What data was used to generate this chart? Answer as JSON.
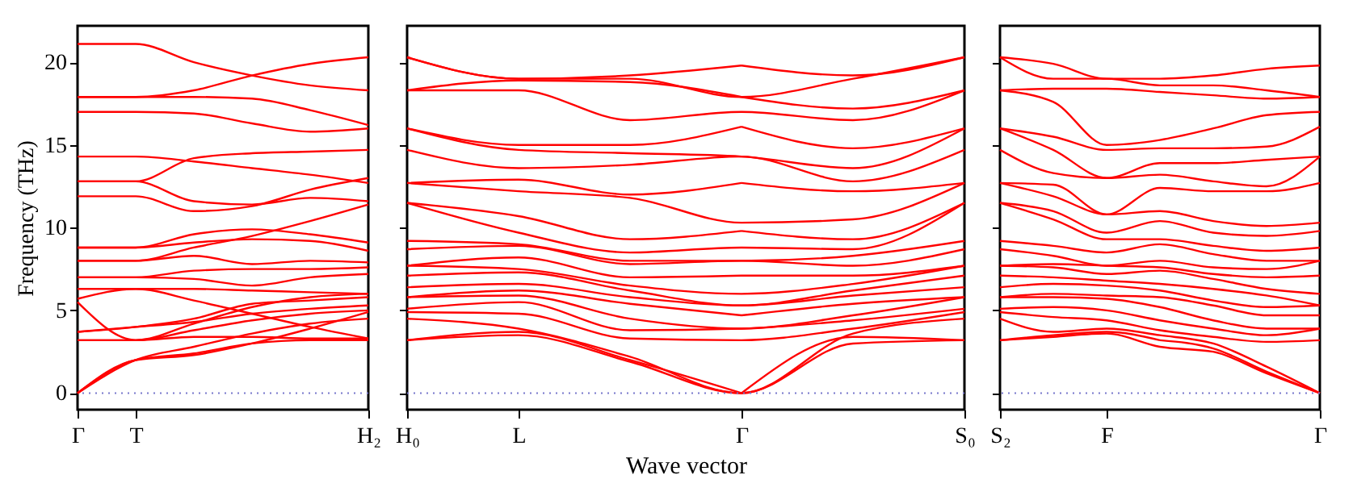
{
  "chart_data": [
    {
      "type": "line",
      "ylabel": "Frequency (THz)",
      "categories": [
        "Γ",
        "T",
        null,
        null,
        null,
        "H₂"
      ],
      "ylim": [
        -1,
        22.2
      ],
      "yticks": [
        0,
        5,
        10,
        15,
        20
      ],
      "ref_lines": [
        {
          "axis": "y",
          "value": 0,
          "color": "#7777cc",
          "line_style": "dotted"
        }
      ],
      "series": [
        {
          "color": "#ff0000",
          "values": [
            21.1,
            21.1,
            20.0,
            19.2,
            18.6,
            18.3
          ]
        },
        {
          "color": "#ff0000",
          "values": [
            17.9,
            17.9,
            18.3,
            19.2,
            19.9,
            20.3
          ]
        },
        {
          "color": "#ff0000",
          "values": [
            17.9,
            17.9,
            17.9,
            17.8,
            17.1,
            16.2
          ]
        },
        {
          "color": "#ff0000",
          "values": [
            17.0,
            17.0,
            16.9,
            16.3,
            15.8,
            16.0
          ]
        },
        {
          "color": "#ff0000",
          "values": [
            12.8,
            12.8,
            14.2,
            14.5,
            14.6,
            14.7
          ]
        },
        {
          "color": "#ff0000",
          "values": [
            14.3,
            14.3,
            14.0,
            13.6,
            13.2,
            12.7
          ]
        },
        {
          "color": "#ff0000",
          "values": [
            12.8,
            12.8,
            11.6,
            11.4,
            11.8,
            11.6
          ]
        },
        {
          "color": "#ff0000",
          "values": [
            11.9,
            11.9,
            11.0,
            11.3,
            12.3,
            13.0
          ]
        },
        {
          "color": "#ff0000",
          "values": [
            8.0,
            8.0,
            8.8,
            9.5,
            10.4,
            11.4
          ]
        },
        {
          "color": "#ff0000",
          "values": [
            8.8,
            8.8,
            9.6,
            9.9,
            9.6,
            9.1
          ]
        },
        {
          "color": "#ff0000",
          "values": [
            8.8,
            8.8,
            9.1,
            9.3,
            9.2,
            8.6
          ]
        },
        {
          "color": "#ff0000",
          "values": [
            8.0,
            8.0,
            8.3,
            7.8,
            8.0,
            7.9
          ]
        },
        {
          "color": "#ff0000",
          "values": [
            7.0,
            7.0,
            7.4,
            7.5,
            7.5,
            7.6
          ]
        },
        {
          "color": "#ff0000",
          "values": [
            7.0,
            7.0,
            6.9,
            6.5,
            7.0,
            7.2
          ]
        },
        {
          "color": "#ff0000",
          "values": [
            6.3,
            6.3,
            6.3,
            6.2,
            6.1,
            6.0
          ]
        },
        {
          "color": "#ff0000",
          "values": [
            5.7,
            6.3,
            5.6,
            4.8,
            4.0,
            3.3
          ]
        },
        {
          "color": "#ff0000",
          "values": [
            5.5,
            3.2,
            4.2,
            5.2,
            5.8,
            6.0
          ]
        },
        {
          "color": "#ff0000",
          "values": [
            3.7,
            4.0,
            4.5,
            5.4,
            5.6,
            5.8
          ]
        },
        {
          "color": "#ff0000",
          "values": [
            3.7,
            4.0,
            4.3,
            4.8,
            5.1,
            5.3
          ]
        },
        {
          "color": "#ff0000",
          "values": [
            3.2,
            3.2,
            3.8,
            4.4,
            4.8,
            5.0
          ]
        },
        {
          "color": "#ff0000",
          "values": [
            3.2,
            3.2,
            3.4,
            3.4,
            3.3,
            3.3
          ]
        },
        {
          "color": "#ff0000",
          "values": [
            0,
            2.0,
            2.8,
            3.6,
            4.2,
            4.5
          ]
        },
        {
          "color": "#ff0000",
          "values": [
            0,
            2.0,
            2.4,
            3.0,
            3.2,
            3.2
          ]
        },
        {
          "color": "#ff0000",
          "values": [
            0,
            2.0,
            2.3,
            3.0,
            3.9,
            4.9
          ]
        }
      ]
    },
    {
      "type": "line",
      "xlabel": "Wave vector",
      "tick_labels": "x",
      "categories": [
        "H₀",
        "L",
        null,
        "Γ",
        null,
        "S₀"
      ],
      "ylim": [
        -1,
        22.2
      ],
      "yticks": [
        0,
        5,
        10,
        15,
        20
      ],
      "ref_lines": [
        {
          "axis": "y",
          "value": 0,
          "color": "#7777cc",
          "line_style": "dotted"
        }
      ],
      "series": [
        {
          "color": "#ff0000",
          "values": [
            3.2,
            3.5,
            1.9,
            0,
            3.0,
            3.2
          ]
        },
        {
          "color": "#ff0000",
          "values": [
            3.2,
            3.7,
            2.0,
            0,
            null,
            null
          ]
        },
        {
          "color": "#ff0000",
          "values": [
            null,
            null,
            null,
            0,
            3.4,
            3.2
          ]
        },
        {
          "color": "#ff0000",
          "values": [
            4.5,
            3.9,
            2.2,
            0,
            3.6,
            4.5
          ]
        },
        {
          "color": "#ff0000",
          "values": [
            4.9,
            4.8,
            3.3,
            3.2,
            3.9,
            4.9
          ]
        },
        {
          "color": "#ff0000",
          "values": [
            5.1,
            5.5,
            3.8,
            3.9,
            4.4,
            5.1
          ]
        },
        {
          "color": "#ff0000",
          "values": [
            5.8,
            5.9,
            4.5,
            3.9,
            4.7,
            5.8
          ]
        },
        {
          "color": "#ff0000",
          "values": [
            5.8,
            6.2,
            5.4,
            4.7,
            null,
            null
          ]
        },
        {
          "color": "#ff0000",
          "values": [
            null,
            null,
            null,
            4.7,
            5.4,
            5.8
          ]
        },
        {
          "color": "#ff0000",
          "values": [
            6.4,
            6.6,
            5.8,
            5.3,
            5.9,
            6.4
          ]
        },
        {
          "color": "#ff0000",
          "values": [
            7.1,
            7.3,
            6.2,
            5.3,
            6.2,
            7.1
          ]
        },
        {
          "color": "#ff0000",
          "values": [
            7.7,
            7.5,
            6.5,
            6.0,
            6.6,
            7.7
          ]
        },
        {
          "color": "#ff0000",
          "values": [
            7.7,
            8.2,
            7.0,
            7.1,
            null,
            null
          ]
        },
        {
          "color": "#ff0000",
          "values": [
            null,
            null,
            null,
            7.1,
            7.1,
            7.7
          ]
        },
        {
          "color": "#ff0000",
          "values": [
            8.7,
            8.9,
            7.8,
            8.0,
            7.7,
            8.7
          ]
        },
        {
          "color": "#ff0000",
          "values": [
            9.2,
            9.0,
            8.0,
            8.0,
            8.3,
            9.2
          ]
        },
        {
          "color": "#ff0000",
          "values": [
            11.5,
            9.7,
            8.5,
            8.8,
            8.7,
            11.5
          ]
        },
        {
          "color": "#ff0000",
          "values": [
            11.5,
            10.7,
            9.3,
            9.8,
            null,
            null
          ]
        },
        {
          "color": "#ff0000",
          "values": [
            null,
            null,
            null,
            9.8,
            9.3,
            11.5
          ]
        },
        {
          "color": "#ff0000",
          "values": [
            12.7,
            12.2,
            11.8,
            10.3,
            10.5,
            12.7
          ]
        },
        {
          "color": "#ff0000",
          "values": [
            12.7,
            12.9,
            12.0,
            12.7,
            null,
            null
          ]
        },
        {
          "color": "#ff0000",
          "values": [
            null,
            null,
            null,
            12.7,
            12.2,
            12.7
          ]
        },
        {
          "color": "#ff0000",
          "values": [
            14.7,
            13.6,
            13.8,
            14.3,
            12.8,
            14.7
          ]
        },
        {
          "color": "#ff0000",
          "values": [
            16.0,
            14.7,
            14.5,
            14.3,
            13.6,
            16.0
          ]
        },
        {
          "color": "#ff0000",
          "values": [
            16.0,
            15.0,
            15.0,
            16.1,
            null,
            null
          ]
        },
        {
          "color": "#ff0000",
          "values": [
            null,
            null,
            null,
            16.1,
            14.8,
            16.0
          ]
        },
        {
          "color": "#ff0000",
          "values": [
            18.3,
            18.3,
            16.5,
            17.0,
            16.5,
            18.3
          ]
        },
        {
          "color": "#ff0000",
          "values": [
            18.3,
            18.9,
            18.8,
            17.9,
            null,
            null
          ]
        },
        {
          "color": "#ff0000",
          "values": [
            null,
            null,
            null,
            17.9,
            17.2,
            18.3
          ]
        },
        {
          "color": "#ff0000",
          "values": [
            20.3,
            19.0,
            19.0,
            17.9,
            19.0,
            20.3
          ]
        },
        {
          "color": "#ff0000",
          "values": [
            20.3,
            19.0,
            19.2,
            19.8,
            null,
            null
          ]
        },
        {
          "color": "#ff0000",
          "values": [
            null,
            null,
            null,
            19.8,
            19.2,
            20.3
          ]
        }
      ]
    },
    {
      "type": "line",
      "tick_labels": "x",
      "categories": [
        "S₂",
        null,
        "F",
        null,
        null,
        null,
        "Γ"
      ],
      "ylim": [
        -1,
        22.2
      ],
      "yticks": [
        0,
        5,
        10,
        15,
        20
      ],
      "ref_lines": [
        {
          "axis": "y",
          "value": 0,
          "color": "#7777cc",
          "line_style": "dotted"
        }
      ],
      "series": [
        {
          "color": "#ff0000",
          "values": [
            3.2,
            3.4,
            3.6,
            2.8,
            2.5,
            1.2,
            0
          ]
        },
        {
          "color": "#ff0000",
          "values": [
            3.2,
            3.5,
            3.7,
            3.2,
            null,
            null,
            null
          ]
        },
        {
          "color": "#ff0000",
          "values": [
            null,
            null,
            null,
            3.2,
            2.7,
            1.3,
            0
          ]
        },
        {
          "color": "#ff0000",
          "values": [
            4.5,
            3.7,
            3.9,
            3.5,
            3.0,
            1.6,
            0
          ]
        },
        {
          "color": "#ff0000",
          "values": [
            4.9,
            4.6,
            4.4,
            3.8,
            3.4,
            3.1,
            3.2
          ]
        },
        {
          "color": "#ff0000",
          "values": [
            5.1,
            5.2,
            5.0,
            4.4,
            3.9,
            3.5,
            3.9
          ]
        },
        {
          "color": "#ff0000",
          "values": [
            5.8,
            5.8,
            5.7,
            5.2,
            4.4,
            3.9,
            3.9
          ]
        },
        {
          "color": "#ff0000",
          "values": [
            5.8,
            6.0,
            5.9,
            5.8,
            5.3,
            4.7,
            4.7
          ]
        },
        {
          "color": "#ff0000",
          "values": [
            6.4,
            6.6,
            6.5,
            6.2,
            5.6,
            5.2,
            5.3
          ]
        },
        {
          "color": "#ff0000",
          "values": [
            7.1,
            7.0,
            6.8,
            6.6,
            6.3,
            5.9,
            5.3
          ]
        },
        {
          "color": "#ff0000",
          "values": [
            7.7,
            7.6,
            7.2,
            7.4,
            6.9,
            6.3,
            6.0
          ]
        },
        {
          "color": "#ff0000",
          "values": [
            7.7,
            7.8,
            7.7,
            7.6,
            7.2,
            7.0,
            7.1
          ]
        },
        {
          "color": "#ff0000",
          "values": [
            8.7,
            8.3,
            7.7,
            8.0,
            7.6,
            7.5,
            8.0
          ]
        },
        {
          "color": "#ff0000",
          "values": [
            9.2,
            8.9,
            8.5,
            9.0,
            8.4,
            8.0,
            8.0
          ]
        },
        {
          "color": "#ff0000",
          "values": [
            11.5,
            10.5,
            9.3,
            9.3,
            8.9,
            8.6,
            8.8
          ]
        },
        {
          "color": "#ff0000",
          "values": [
            11.5,
            11.0,
            9.7,
            10.4,
            9.7,
            9.5,
            9.8
          ]
        },
        {
          "color": "#ff0000",
          "values": [
            12.7,
            11.9,
            10.8,
            11.0,
            10.4,
            10.1,
            10.3
          ]
        },
        {
          "color": "#ff0000",
          "values": [
            12.7,
            12.6,
            10.8,
            12.4,
            12.2,
            12.2,
            12.7
          ]
        },
        {
          "color": "#ff0000",
          "values": [
            14.7,
            13.3,
            13.0,
            13.2,
            12.8,
            12.5,
            14.3
          ]
        },
        {
          "color": "#ff0000",
          "values": [
            16.0,
            14.7,
            13.0,
            13.9,
            13.9,
            14.1,
            14.3
          ]
        },
        {
          "color": "#ff0000",
          "values": [
            16.0,
            15.5,
            14.7,
            14.8,
            14.8,
            14.9,
            16.1
          ]
        },
        {
          "color": "#ff0000",
          "values": [
            18.3,
            17.6,
            15.0,
            15.3,
            16.0,
            16.8,
            17.0
          ]
        },
        {
          "color": "#ff0000",
          "values": [
            18.3,
            18.4,
            18.4,
            18.2,
            18.0,
            17.8,
            17.9
          ]
        },
        {
          "color": "#ff0000",
          "values": [
            20.3,
            19.0,
            19.0,
            18.6,
            18.6,
            18.3,
            17.9
          ]
        },
        {
          "color": "#ff0000",
          "values": [
            20.3,
            19.9,
            19.0,
            19.0,
            19.2,
            19.6,
            19.8
          ]
        }
      ]
    }
  ]
}
